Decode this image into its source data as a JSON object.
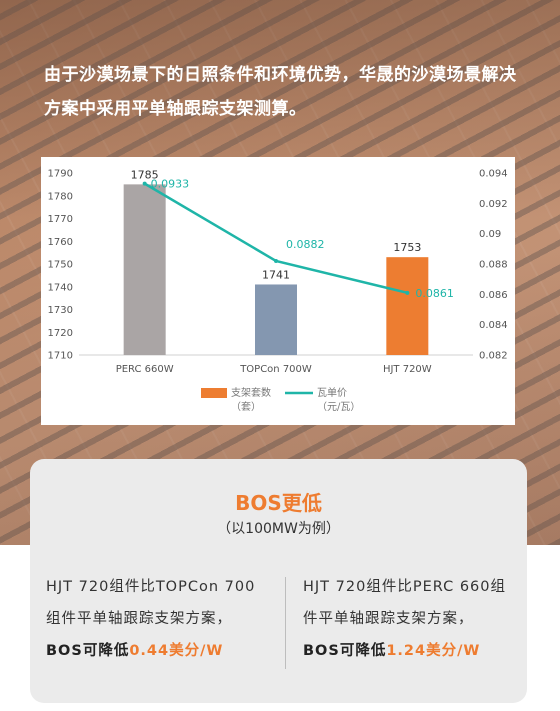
{
  "intro_text": "由于沙漠场景下的日照条件和环境优势，华晟的沙漠场景解决方案中采用平单轴跟踪支架测算。",
  "chart_data": {
    "type": "bar",
    "categories": [
      "PERC 660W",
      "TOPCon 700W",
      "HJT 720W"
    ],
    "series": [
      {
        "name": "支架套数（套）",
        "type": "bar",
        "axis": "left",
        "values": [
          1785,
          1741,
          1753
        ],
        "bar_colors": [
          "#aaa5a5",
          "#8497b0",
          "#ed7d31"
        ]
      },
      {
        "name": "瓦单价（元/瓦）",
        "type": "line",
        "axis": "right",
        "values": [
          0.0933,
          0.0882,
          0.0861
        ],
        "color": "#1fb5a8"
      }
    ],
    "y_left": {
      "min": 1710,
      "max": 1790,
      "ticks": [
        1710,
        1720,
        1730,
        1740,
        1750,
        1760,
        1770,
        1780,
        1790
      ]
    },
    "y_right": {
      "min": 0.082,
      "max": 0.094,
      "ticks": [
        "0.082",
        "0.084",
        "0.086",
        "0.088",
        "0.09",
        "0.092",
        "0.094"
      ]
    },
    "legend_position": "bottom",
    "legend": [
      {
        "line1": "支架套数",
        "line2": "（套）",
        "color": "#ed7d31",
        "kind": "box"
      },
      {
        "line1": "瓦单价",
        "line2": "（元/瓦）",
        "color": "#1fb5a8",
        "kind": "line"
      }
    ],
    "grid": false
  },
  "card": {
    "title": "BOS更低",
    "subtitle": "（以100MW为例）",
    "left": {
      "line1": "HJT 720组件比TOPCon 700",
      "line2": "组件平单轴跟踪支架方案，",
      "bos_prefix": "BOS可降低",
      "bos_value": "0.44美分/W"
    },
    "right": {
      "line1": "HJT 720组件比PERC 660组",
      "line2": "件平单轴跟踪支架方案，",
      "bos_prefix": "BOS可降低",
      "bos_value": "1.24美分/W"
    }
  }
}
